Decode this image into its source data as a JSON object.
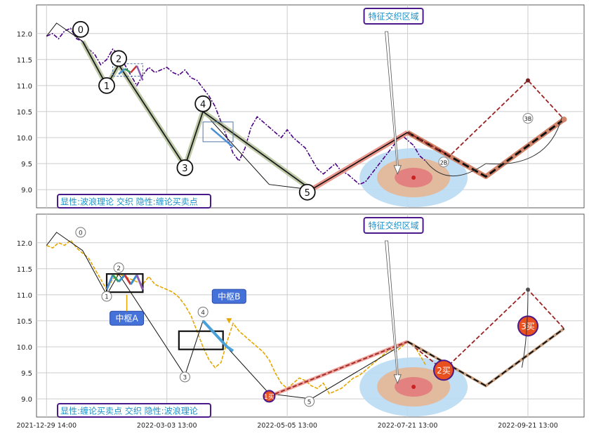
{
  "chart_data": [
    {
      "type": "line",
      "title": "",
      "ylim": [
        8.65,
        12.55
      ],
      "yticks": [
        "9.0",
        "9.5",
        "10.0",
        "10.5",
        "11.0",
        "11.5",
        "12.0"
      ],
      "grid": true,
      "annotation_box": "特征交织区域",
      "caption": "显性:波浪理论 交织 隐性:缠论买卖点",
      "wave_labels": [
        "0",
        "1",
        "2",
        "3",
        "4",
        "5"
      ],
      "price_series": [
        [
          0,
          11.95
        ],
        [
          3,
          12.0
        ],
        [
          6,
          11.9
        ],
        [
          9,
          12.05
        ],
        [
          12,
          12.1
        ],
        [
          15,
          11.9
        ],
        [
          18,
          11.85
        ],
        [
          21,
          11.7
        ],
        [
          24,
          11.6
        ],
        [
          27,
          11.4
        ],
        [
          30,
          11.5
        ],
        [
          33,
          11.7
        ],
        [
          36,
          11.6
        ],
        [
          39,
          11.4
        ],
        [
          42,
          11.2
        ],
        [
          45,
          11.0
        ],
        [
          48,
          11.2
        ],
        [
          51,
          11.35
        ],
        [
          54,
          11.25
        ],
        [
          57,
          11.3
        ],
        [
          60,
          11.35
        ],
        [
          63,
          11.25
        ],
        [
          66,
          11.2
        ],
        [
          69,
          11.3
        ],
        [
          72,
          11.15
        ],
        [
          75,
          11.1
        ],
        [
          78,
          10.95
        ],
        [
          81,
          10.8
        ],
        [
          84,
          10.6
        ],
        [
          87,
          10.3
        ],
        [
          90,
          10.0
        ],
        [
          93,
          9.7
        ],
        [
          96,
          9.55
        ],
        [
          99,
          9.8
        ],
        [
          102,
          10.2
        ],
        [
          105,
          10.4
        ],
        [
          108,
          10.3
        ],
        [
          111,
          10.2
        ],
        [
          114,
          10.1
        ],
        [
          117,
          10.0
        ],
        [
          120,
          10.15
        ],
        [
          123,
          10.0
        ],
        [
          126,
          9.9
        ],
        [
          129,
          9.8
        ],
        [
          132,
          9.6
        ],
        [
          135,
          9.4
        ],
        [
          138,
          9.3
        ],
        [
          141,
          9.4
        ],
        [
          144,
          9.5
        ],
        [
          147,
          9.35
        ],
        [
          150,
          9.3
        ],
        [
          153,
          9.2
        ],
        [
          156,
          9.1
        ],
        [
          159,
          9.15
        ],
        [
          162,
          9.3
        ],
        [
          165,
          9.45
        ],
        [
          168,
          9.6
        ],
        [
          171,
          9.75
        ],
        [
          174,
          9.9
        ],
        [
          177,
          10.05
        ],
        [
          180,
          9.95
        ],
        [
          183,
          9.85
        ],
        [
          186,
          9.65
        ],
        [
          189,
          9.55
        ]
      ],
      "wave_path": [
        [
          18,
          11.85
        ],
        [
          30,
          11.0
        ],
        [
          36,
          11.4
        ],
        [
          69,
          9.45
        ],
        [
          78,
          10.5
        ],
        [
          132,
          9.0
        ],
        [
          180,
          10.1
        ],
        [
          219,
          9.25
        ],
        [
          258,
          10.35
        ]
      ],
      "stroke_path": [
        [
          0,
          11.95
        ],
        [
          5,
          12.2
        ],
        [
          18,
          11.85
        ],
        [
          30,
          11.0
        ],
        [
          36,
          11.4
        ],
        [
          69,
          9.45
        ],
        [
          78,
          10.5
        ],
        [
          111,
          9.1
        ],
        [
          132,
          9.0
        ],
        [
          180,
          10.1
        ],
        [
          219,
          9.25
        ],
        [
          258,
          10.35
        ]
      ],
      "forecast_path": [
        [
          180,
          10.1
        ],
        [
          201,
          9.65
        ],
        [
          219,
          9.25
        ],
        [
          240,
          11.1
        ],
        [
          258,
          10.35
        ]
      ],
      "x_axis": "hidden",
      "series": [
        {
          "name": "",
          "color": "#4b0082"
        },
        {
          "name": "",
          "color": "#556b2f"
        },
        {
          "name": "",
          "color": "#000000"
        },
        {
          "name": "",
          "color": "#a52a2a"
        }
      ],
      "markers": [
        {
          "label": "2B",
          "x": 198,
          "y": 9.53
        },
        {
          "label": "3B",
          "x": 240,
          "y": 10.37
        }
      ]
    },
    {
      "type": "line",
      "title": "",
      "ylim": [
        8.65,
        12.55
      ],
      "yticks": [
        "9.0",
        "9.5",
        "10.0",
        "10.5",
        "11.0",
        "11.5",
        "12.0"
      ],
      "x_ticklabels": [
        "2021-12-29 14:00",
        "2022-03-03 13:00",
        "2022-05-05 13:00",
        "2022-07-21 13:00",
        "2022-09-21 13:00"
      ],
      "grid": true,
      "annotation_box": "特征交织区域",
      "caption": "显性:缠论买卖点 交织 隐性:波浪理论",
      "pivot_labels": [
        "中枢A",
        "中枢B"
      ],
      "buy_points": [
        "1买",
        "2买",
        "3买"
      ],
      "wave_labels": [
        "0",
        "1",
        "2",
        "3",
        "4",
        "5"
      ],
      "price_series": [
        [
          0,
          11.95
        ],
        [
          3,
          11.9
        ],
        [
          6,
          12.0
        ],
        [
          9,
          11.95
        ],
        [
          12,
          12.05
        ],
        [
          15,
          11.9
        ],
        [
          18,
          11.8
        ],
        [
          21,
          11.7
        ],
        [
          24,
          11.5
        ],
        [
          27,
          11.3
        ],
        [
          30,
          11.1
        ],
        [
          33,
          11.3
        ],
        [
          36,
          11.4
        ],
        [
          39,
          11.35
        ],
        [
          42,
          11.3
        ],
        [
          45,
          11.25
        ],
        [
          48,
          11.2
        ],
        [
          51,
          11.35
        ],
        [
          54,
          11.2
        ],
        [
          57,
          11.15
        ],
        [
          60,
          11.1
        ],
        [
          63,
          11.05
        ],
        [
          66,
          10.95
        ],
        [
          69,
          10.8
        ],
        [
          72,
          10.6
        ],
        [
          75,
          10.3
        ],
        [
          78,
          10.0
        ],
        [
          81,
          9.75
        ],
        [
          84,
          9.6
        ],
        [
          87,
          9.7
        ],
        [
          90,
          10.1
        ],
        [
          93,
          10.45
        ],
        [
          96,
          10.3
        ],
        [
          99,
          10.2
        ],
        [
          102,
          10.1
        ],
        [
          105,
          10.0
        ],
        [
          108,
          9.9
        ],
        [
          111,
          9.75
        ],
        [
          114,
          9.5
        ],
        [
          117,
          9.3
        ],
        [
          120,
          9.2
        ],
        [
          123,
          9.3
        ],
        [
          126,
          9.4
        ],
        [
          129,
          9.35
        ],
        [
          132,
          9.25
        ],
        [
          135,
          9.2
        ],
        [
          138,
          9.3
        ],
        [
          141,
          9.1
        ],
        [
          144,
          9.15
        ],
        [
          147,
          9.2
        ],
        [
          150,
          9.3
        ],
        [
          153,
          9.4
        ],
        [
          156,
          9.45
        ],
        [
          159,
          9.55
        ],
        [
          162,
          9.65
        ],
        [
          165,
          9.75
        ],
        [
          168,
          9.85
        ],
        [
          171,
          9.95
        ],
        [
          174,
          9.9
        ],
        [
          177,
          10.0
        ],
        [
          180,
          10.1
        ],
        [
          183,
          10.05
        ],
        [
          186,
          9.85
        ],
        [
          189,
          9.65
        ]
      ],
      "stroke_path": [
        [
          0,
          11.95
        ],
        [
          5,
          12.2
        ],
        [
          18,
          11.85
        ],
        [
          30,
          11.0
        ],
        [
          36,
          11.4
        ],
        [
          69,
          9.45
        ],
        [
          78,
          10.5
        ],
        [
          111,
          9.1
        ],
        [
          132,
          9.0
        ],
        [
          180,
          10.1
        ],
        [
          219,
          9.25
        ],
        [
          258,
          10.35
        ]
      ],
      "chan_path": [
        [
          111,
          9.05
        ],
        [
          180,
          10.1
        ],
        [
          198,
          9.55
        ],
        [
          240,
          11.1
        ],
        [
          258,
          10.35
        ]
      ],
      "pivots": [
        {
          "x0": 30,
          "x1": 48,
          "y0": 11.05,
          "y1": 11.4
        },
        {
          "x0": 66,
          "x1": 88,
          "y0": 9.95,
          "y1": 10.3
        }
      ],
      "series": [
        {
          "name": "",
          "color": "#e6a700"
        },
        {
          "name": "",
          "color": "#000000"
        },
        {
          "name": "",
          "color": "#a52a2a"
        }
      ]
    }
  ]
}
